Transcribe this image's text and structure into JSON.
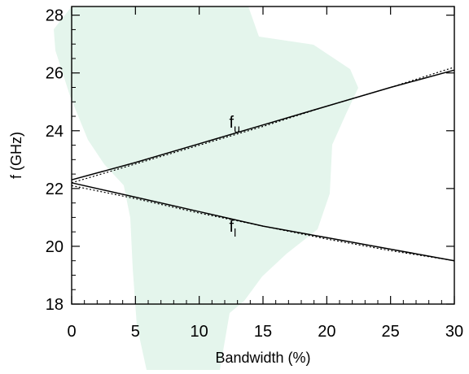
{
  "chart_data": {
    "type": "line",
    "xlabel": "Bandwidth (%)",
    "ylabel": "f (GHz)",
    "xlim": [
      0,
      30
    ],
    "ylim": [
      18,
      28.3
    ],
    "x_ticks": [
      "0",
      "5",
      "10",
      "15",
      "20",
      "25",
      "30"
    ],
    "y_ticks": [
      "18",
      "20",
      "22",
      "24",
      "26",
      "28"
    ],
    "grid": false,
    "background_colors": {
      "shape": "#e4f5ec",
      "axes": "#000000"
    },
    "series": [
      {
        "label": "f_u",
        "line": "solid",
        "x": [
          0,
          5,
          10,
          15,
          20,
          25,
          30
        ],
        "y": [
          22.3,
          22.9,
          23.55,
          24.2,
          24.85,
          25.5,
          26.1
        ]
      },
      {
        "label": "f_u",
        "line": "dotted",
        "x": [
          0,
          5,
          10,
          15,
          20,
          25,
          30
        ],
        "y": [
          22.2,
          22.85,
          23.5,
          24.15,
          24.85,
          25.5,
          26.2
        ]
      },
      {
        "label": "f_l",
        "line": "solid",
        "x": [
          0,
          5,
          10,
          15,
          20,
          25,
          30
        ],
        "y": [
          22.2,
          21.7,
          21.2,
          20.7,
          20.3,
          19.9,
          19.5
        ]
      },
      {
        "label": "f_l",
        "line": "dotted",
        "x": [
          0,
          5,
          10,
          15,
          20,
          25,
          30
        ],
        "y": [
          22.1,
          21.65,
          21.15,
          20.7,
          20.25,
          19.85,
          19.5
        ]
      }
    ],
    "annotations": [
      {
        "main": "f",
        "sub": "u",
        "x": 12.8,
        "y": 24.1
      },
      {
        "main": "f",
        "sub": "l",
        "x": 12.8,
        "y": 20.5
      }
    ]
  }
}
